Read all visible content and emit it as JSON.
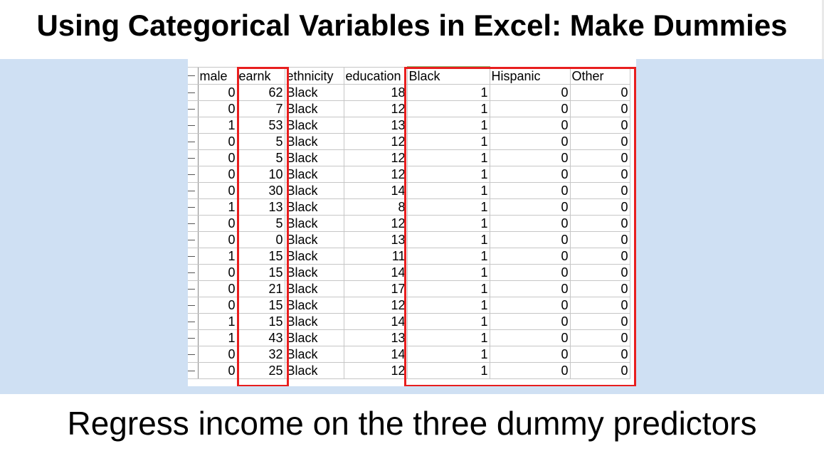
{
  "slide": {
    "title": "Using Categorical Variables in Excel: Make Dummies",
    "subtitle": "Regress income on the three dummy predictors"
  },
  "spreadsheet": {
    "columns": [
      "male",
      "earnk",
      "ethnicity",
      "education",
      "Black",
      "Hispanic",
      "Other"
    ],
    "rows": [
      [
        "0",
        "62",
        "Black",
        "18",
        "1",
        "0",
        "0"
      ],
      [
        "0",
        "7",
        "Black",
        "12",
        "1",
        "0",
        "0"
      ],
      [
        "1",
        "53",
        "Black",
        "13",
        "1",
        "0",
        "0"
      ],
      [
        "0",
        "5",
        "Black",
        "12",
        "1",
        "0",
        "0"
      ],
      [
        "0",
        "5",
        "Black",
        "12",
        "1",
        "0",
        "0"
      ],
      [
        "0",
        "10",
        "Black",
        "12",
        "1",
        "0",
        "0"
      ],
      [
        "0",
        "30",
        "Black",
        "14",
        "1",
        "0",
        "0"
      ],
      [
        "1",
        "13",
        "Black",
        "8",
        "1",
        "0",
        "0"
      ],
      [
        "0",
        "5",
        "Black",
        "12",
        "1",
        "0",
        "0"
      ],
      [
        "0",
        "0",
        "Black",
        "13",
        "1",
        "0",
        "0"
      ],
      [
        "1",
        "15",
        "Black",
        "11",
        "1",
        "0",
        "0"
      ],
      [
        "0",
        "15",
        "Black",
        "14",
        "1",
        "0",
        "0"
      ],
      [
        "0",
        "21",
        "Black",
        "17",
        "1",
        "0",
        "0"
      ],
      [
        "0",
        "15",
        "Black",
        "12",
        "1",
        "0",
        "0"
      ],
      [
        "1",
        "15",
        "Black",
        "14",
        "1",
        "0",
        "0"
      ],
      [
        "1",
        "43",
        "Black",
        "13",
        "1",
        "0",
        "0"
      ],
      [
        "0",
        "32",
        "Black",
        "14",
        "1",
        "0",
        "0"
      ],
      [
        "0",
        "25",
        "Black",
        "12",
        "1",
        "0",
        "0"
      ]
    ]
  },
  "colors": {
    "band_background": "#cfe0f3",
    "highlight_box": "#e81e1e",
    "active_column_marker": "#8fb56a"
  }
}
